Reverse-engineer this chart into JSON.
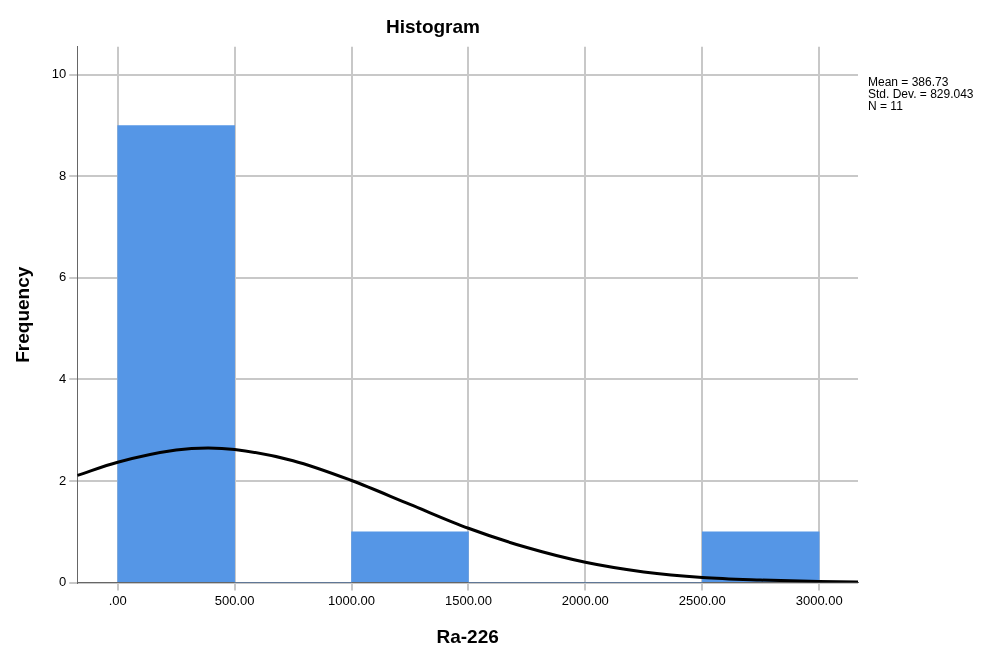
{
  "chart_data": {
    "type": "histogram",
    "title": "Histogram",
    "xlabel": "Ra-226",
    "ylabel": "Frequency",
    "bins": [
      0,
      500,
      1000,
      1500,
      2000,
      2500,
      3000
    ],
    "values": [
      9,
      0,
      1,
      0,
      0,
      1
    ],
    "color": "#5596e6",
    "series": [
      {
        "type": "line",
        "color": "#000000",
        "x": [
          -173,
          0,
          250,
          386.73,
          500,
          750,
          1000,
          1250,
          1500,
          1750,
          2000,
          2250,
          2500,
          2750,
          3000,
          3166
        ],
        "values": [
          2.11,
          2.37,
          2.61,
          2.65,
          2.62,
          2.4,
          2.01,
          1.54,
          1.07,
          0.69,
          0.4,
          0.21,
          0.1,
          0.05,
          0.02,
          0.01
        ]
      }
    ],
    "xlim": [
      -173,
      3166
    ],
    "xticks": [
      {
        "value": 0,
        "label": ".00"
      },
      {
        "value": 500,
        "label": "500.00"
      },
      {
        "value": 1000,
        "label": "1000.00"
      },
      {
        "value": 1500,
        "label": "1500.00"
      },
      {
        "value": 2000,
        "label": "2000.00"
      },
      {
        "value": 2500,
        "label": "2500.00"
      },
      {
        "value": 3000,
        "label": "3000.00"
      }
    ],
    "ylim": [
      0,
      10.55
    ],
    "yticks": [
      0,
      2,
      4,
      6,
      8,
      10
    ],
    "grid": true,
    "legend": false,
    "marker": "none",
    "line_style": "solid",
    "annotations": [
      "Mean = 386.73",
      "Std. Dev. = 829.043",
      "N = 11"
    ]
  }
}
